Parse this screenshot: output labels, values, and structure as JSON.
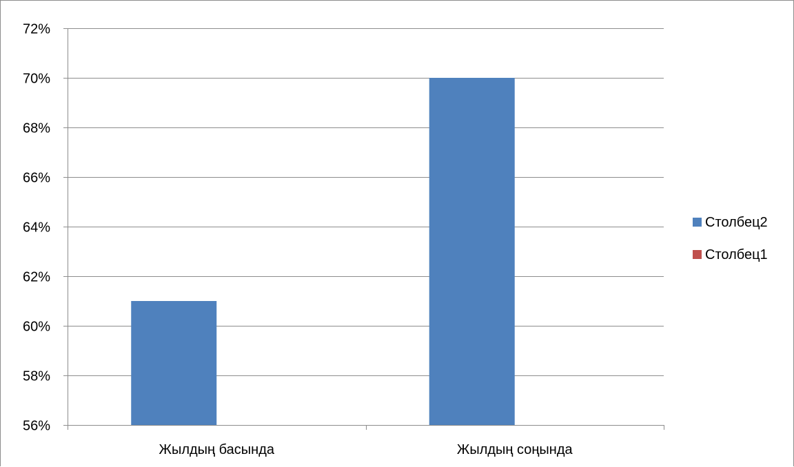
{
  "chart_data": {
    "type": "bar",
    "categories": [
      "Жылдың басында",
      "Жылдың соңында"
    ],
    "series": [
      {
        "name": "Столбец2",
        "values": [
          61,
          70
        ],
        "color": "#4F81BD"
      },
      {
        "name": "Столбец1",
        "values": [
          null,
          null
        ],
        "color": "#C0504D"
      }
    ],
    "ylim": [
      56,
      72
    ],
    "yticks": [
      "56%",
      "58%",
      "60%",
      "62%",
      "64%",
      "66%",
      "68%",
      "70%",
      "72%"
    ],
    "grid": true,
    "legend_position": "right",
    "title": "",
    "xlabel": "",
    "ylabel": ""
  }
}
